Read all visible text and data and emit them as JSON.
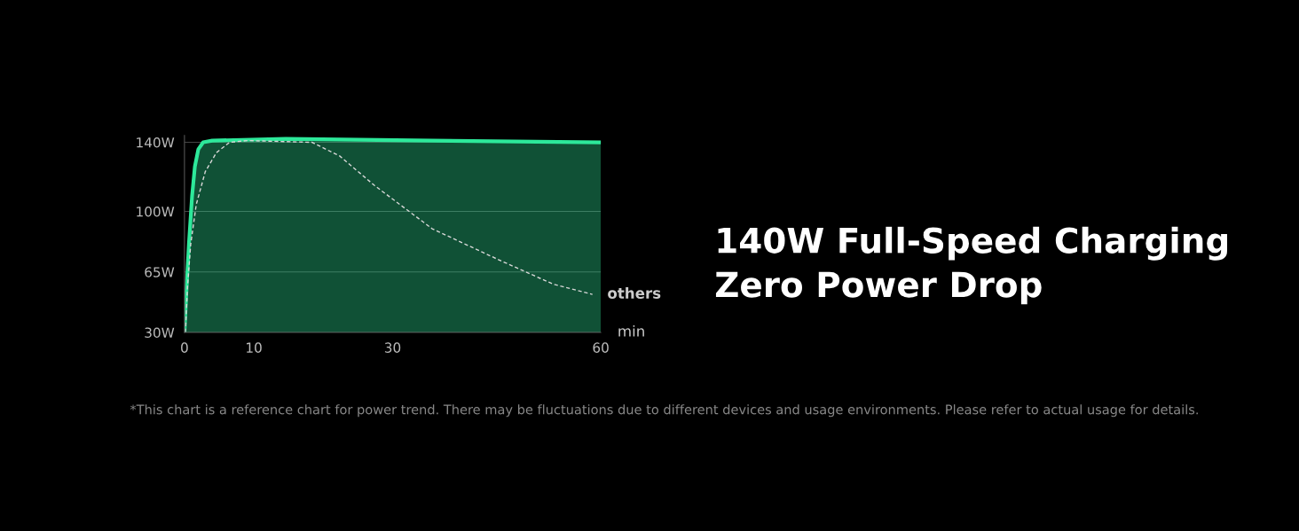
{
  "chart_data": {
    "type": "area",
    "title": "140W Full-Speed Charging\nZero Power Drop",
    "xlabel": "min",
    "annotations": [
      "*This chart is a reference chart for power trend. There may be fluctuations due to different devices and usage environments. Please refer to actual usage for details."
    ],
    "series": [
      {
        "color": "#2de89a",
        "x": [
          0,
          0.26,
          0.64,
          1.1,
          1.5,
          2,
          2.7,
          4,
          14.6,
          35.7,
          60
        ],
        "values": [
          30,
          52,
          81,
          109,
          126,
          136,
          140,
          141,
          142,
          141,
          140
        ]
      },
      {
        "type": "line",
        "name": "others",
        "color": "#d8d8d8",
        "line_style": "dashed",
        "x": [
          0.13,
          0.45,
          0.9,
          1.7,
          3,
          4.6,
          6.5,
          9.1,
          18.4,
          22.4,
          27.4,
          35.7,
          45.3,
          53.1,
          58.8
        ],
        "values": [
          30,
          57,
          81,
          104,
          123,
          134,
          140,
          141,
          140,
          132,
          115,
          90,
          72,
          58,
          52
        ]
      }
    ],
    "xlim": [
      0,
      60
    ],
    "ylim": [
      30,
      144
    ],
    "xticks": [
      0,
      10,
      30,
      60
    ],
    "yticks": [
      {
        "value": 30,
        "label": "30W"
      },
      {
        "value": 65,
        "label": "65W"
      },
      {
        "value": 100,
        "label": "100W"
      },
      {
        "value": 140,
        "label": "140W"
      }
    ],
    "grid": "y",
    "legend": false
  }
}
